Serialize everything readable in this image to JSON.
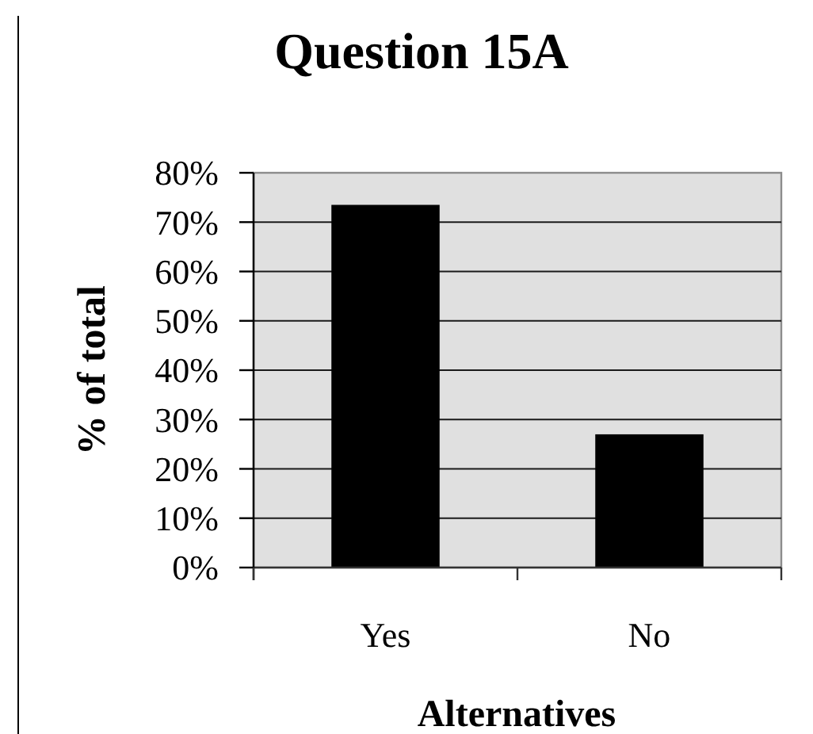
{
  "chart_data": {
    "type": "bar",
    "title": "Question 15A",
    "xlabel": "Alternatives",
    "ylabel": "% of total",
    "categories": [
      "Yes",
      "No"
    ],
    "values": [
      73.5,
      27
    ],
    "color": "#000000",
    "ylim": [
      0,
      80
    ],
    "yticks": [
      {
        "value": 0,
        "label": "0%"
      },
      {
        "value": 10,
        "label": "10%"
      },
      {
        "value": 20,
        "label": "20%"
      },
      {
        "value": 30,
        "label": "30%"
      },
      {
        "value": 40,
        "label": "40%"
      },
      {
        "value": 50,
        "label": "50%"
      },
      {
        "value": 60,
        "label": "60%"
      },
      {
        "value": 70,
        "label": "70%"
      },
      {
        "value": 80,
        "label": "80%"
      }
    ],
    "grid": "y"
  }
}
